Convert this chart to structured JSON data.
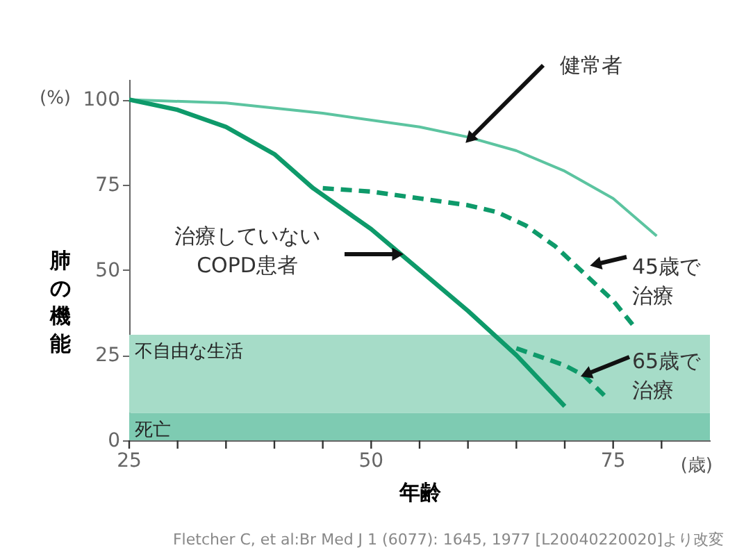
{
  "chart_data": {
    "type": "line",
    "xlabel": "年齢",
    "ylabel": "肺の機能",
    "xlim": [
      25,
      85
    ],
    "ylim": [
      0,
      106
    ],
    "xticks": [
      25,
      {
        "value": 30,
        "label": null
      },
      {
        "value": 35,
        "label": null
      },
      {
        "value": 40,
        "label": null
      },
      {
        "value": 45,
        "label": null
      },
      50,
      {
        "value": 55,
        "label": null
      },
      {
        "value": 60,
        "label": null
      },
      {
        "value": 65,
        "label": null
      },
      {
        "value": 70,
        "label": null
      },
      75,
      {
        "value": 80,
        "label": null
      }
    ],
    "yticks": [
      0,
      25,
      50,
      75,
      100
    ],
    "grid": false,
    "series": [
      {
        "name": "健常者",
        "color": "#5cc4a0",
        "line_style": "solid",
        "x": [
          25,
          35,
          45,
          55,
          60,
          65,
          70,
          75,
          79.5
        ],
        "values": [
          100,
          99,
          96,
          92,
          89,
          85,
          79,
          71,
          60
        ]
      },
      {
        "name": "治療していないCOPD患者",
        "color": "#0e9a6a",
        "line_style": "solid",
        "x": [
          25,
          30,
          35,
          40,
          44,
          50,
          55,
          60,
          65,
          70
        ],
        "values": [
          100,
          97,
          92,
          84,
          74,
          62,
          50,
          38,
          25,
          10
        ]
      },
      {
        "name": "45歳で治療",
        "color": "#0e9a6a",
        "line_style": "dashed",
        "x": [
          45,
          50,
          55,
          60,
          63,
          66,
          69,
          72,
          75,
          77
        ],
        "values": [
          74,
          73,
          71,
          69,
          67,
          63,
          57,
          49,
          41,
          34
        ]
      },
      {
        "name": "65歳で治療",
        "color": "#0e9a6a",
        "line_style": "dashed",
        "x": [
          65,
          68,
          70,
          72,
          74.5
        ],
        "values": [
          27,
          24,
          22,
          19,
          12
        ]
      }
    ],
    "bands": [
      {
        "axis": "y",
        "from": 8,
        "to": 31,
        "label": "不自由な生活",
        "color": "#a6dcc8"
      },
      {
        "axis": "y",
        "from": 0,
        "to": 8,
        "label": "死亡",
        "color": "#7ecbb2"
      }
    ],
    "annotations": [
      "(%)",
      "(歳)",
      "Fletcher C, et al:Br Med J 1 (6077): 1645, 1977 [L20040220020]より改変"
    ]
  }
}
